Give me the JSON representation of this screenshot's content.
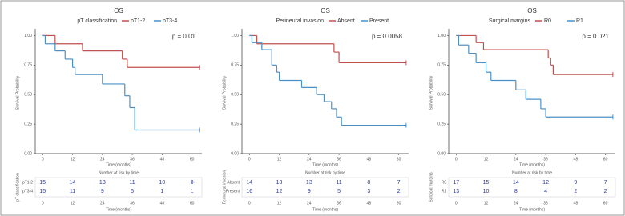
{
  "chart_data": [
    {
      "type": "step",
      "title": "OS",
      "legend_title": "pT classification",
      "annotation": "p = 0.01",
      "xlabel": "Time (months)",
      "ylabel": "Survival Probability",
      "xlim": [
        -3,
        64
      ],
      "xticks": [
        0,
        12,
        24,
        36,
        48,
        60
      ],
      "ylim": [
        0,
        1.03
      ],
      "yticks": [
        {
          "value": 0,
          "label": "0.00"
        },
        {
          "value": 0.25,
          "label": "0.25"
        },
        {
          "value": 0.5,
          "label": "0.50"
        },
        {
          "value": 0.75,
          "label": "0.75"
        },
        {
          "value": 1,
          "label": "1.00"
        }
      ],
      "series": [
        {
          "name": "pT1-2",
          "color": "#c0504d",
          "x": [
            0,
            5,
            16,
            32,
            34,
            63
          ],
          "values": [
            1,
            0.93,
            0.87,
            0.8,
            0.73,
            0.73
          ]
        },
        {
          "name": "pT3-4",
          "color": "#4a90c8",
          "x": [
            0,
            1,
            5,
            9,
            12,
            13,
            24,
            33,
            35,
            37,
            63
          ],
          "values": [
            1,
            0.93,
            0.87,
            0.8,
            0.73,
            0.67,
            0.59,
            0.49,
            0.39,
            0.2,
            0.2
          ]
        }
      ],
      "risk_table": {
        "title": "Number at risk by time",
        "ylabel": "pT classification",
        "xlabel": "Time (months)",
        "rows": [
          [
            15,
            14,
            13,
            11,
            10,
            8
          ],
          [
            15,
            11,
            9,
            5,
            1,
            1
          ]
        ]
      }
    },
    {
      "type": "step",
      "title": "OS",
      "legend_title": "Perineural invasion",
      "annotation": "p = 0.0058",
      "xlabel": "Time (months)",
      "ylabel": "Survival Probability",
      "xlim": [
        -3,
        64
      ],
      "xticks": [
        0,
        12,
        24,
        36,
        48,
        60
      ],
      "ylim": [
        0,
        1.03
      ],
      "yticks": [
        {
          "value": 0,
          "label": "0.00"
        },
        {
          "value": 0.25,
          "label": "0.25"
        },
        {
          "value": 0.5,
          "label": "0.50"
        },
        {
          "value": 0.75,
          "label": "0.75"
        },
        {
          "value": 1,
          "label": "1.00"
        }
      ],
      "series": [
        {
          "name": "Absent",
          "color": "#c0504d",
          "x": [
            0,
            3,
            34,
            36,
            63
          ],
          "values": [
            1,
            0.93,
            0.86,
            0.77,
            0.77
          ]
        },
        {
          "name": "Present",
          "color": "#4a90c8",
          "x": [
            0,
            1,
            5,
            9,
            11,
            12,
            21,
            27,
            30,
            33,
            35,
            37,
            63
          ],
          "values": [
            1,
            0.94,
            0.88,
            0.75,
            0.69,
            0.62,
            0.56,
            0.5,
            0.44,
            0.38,
            0.31,
            0.24,
            0.24
          ]
        }
      ],
      "risk_table": {
        "title": "Number at risk by time",
        "ylabel": "Perineural invasion",
        "xlabel": "Time (months)",
        "rows": [
          [
            14,
            13,
            13,
            11,
            8,
            7
          ],
          [
            16,
            12,
            9,
            5,
            3,
            2
          ]
        ]
      }
    },
    {
      "type": "step",
      "title": "OS",
      "legend_title": "Surgical margins",
      "annotation": "p = 0.021",
      "xlabel": "Time (months)",
      "ylabel": "Survival Probability",
      "xlim": [
        -3,
        64
      ],
      "xticks": [
        0,
        12,
        24,
        36,
        48,
        60
      ],
      "ylim": [
        0,
        1.03
      ],
      "yticks": [
        {
          "value": 0,
          "label": "0.00"
        },
        {
          "value": 0.25,
          "label": "0.25"
        },
        {
          "value": 0.5,
          "label": "0.50"
        },
        {
          "value": 0.75,
          "label": "0.75"
        },
        {
          "value": 1,
          "label": "1.00"
        }
      ],
      "series": [
        {
          "name": "R0",
          "color": "#c0504d",
          "x": [
            0,
            8,
            11,
            37,
            38,
            39,
            63
          ],
          "values": [
            1,
            0.94,
            0.88,
            0.81,
            0.75,
            0.67,
            0.67
          ]
        },
        {
          "name": "R1",
          "color": "#4a90c8",
          "x": [
            0,
            1,
            5,
            8,
            12,
            14,
            24,
            28,
            34,
            36,
            63
          ],
          "values": [
            1,
            0.92,
            0.85,
            0.77,
            0.69,
            0.62,
            0.54,
            0.46,
            0.38,
            0.31,
            0.31
          ]
        }
      ],
      "risk_table": {
        "title": "Number at risk by time",
        "ylabel": "Surgical margins",
        "xlabel": "Time (months)",
        "rows": [
          [
            17,
            15,
            14,
            12,
            9,
            7
          ],
          [
            13,
            10,
            8,
            4,
            2,
            2
          ]
        ]
      }
    }
  ]
}
